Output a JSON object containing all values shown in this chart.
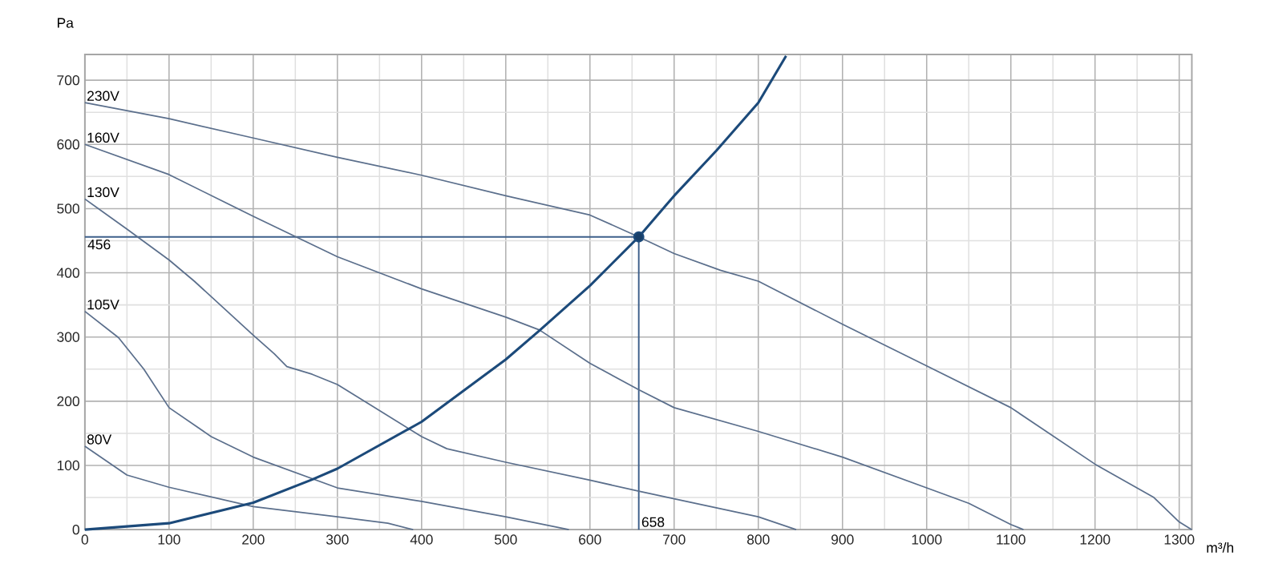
{
  "chart_data": {
    "type": "line",
    "xlabel": "m³/h",
    "ylabel": "Pa",
    "xlim": [
      0,
      1315
    ],
    "ylim": [
      0,
      740
    ],
    "xticks": [
      0,
      100,
      200,
      300,
      400,
      500,
      600,
      700,
      800,
      900,
      1000,
      1100,
      1200,
      1300
    ],
    "yticks": [
      0,
      100,
      200,
      300,
      400,
      500,
      600,
      700
    ],
    "grid": true,
    "series": [
      {
        "name": "230V",
        "color": "#5b6f8c",
        "x": [
          0,
          100,
          200,
          300,
          400,
          500,
          600,
          658,
          700,
          755,
          800,
          900,
          1000,
          1100,
          1200,
          1270,
          1300,
          1315
        ],
        "values": [
          665,
          640,
          610,
          580,
          552,
          520,
          490,
          456,
          430,
          404,
          387,
          320,
          255,
          190,
          102,
          50,
          12,
          0
        ]
      },
      {
        "name": "160V",
        "color": "#5b6f8c",
        "x": [
          0,
          100,
          200,
          300,
          400,
          500,
          540,
          600,
          658,
          700,
          800,
          900,
          1000,
          1050,
          1100,
          1115
        ],
        "values": [
          600,
          553,
          488,
          425,
          375,
          331,
          311,
          259,
          218,
          190,
          153,
          113,
          65,
          41,
          8,
          0
        ]
      },
      {
        "name": "130V",
        "color": "#5b6f8c",
        "x": [
          0,
          50,
          100,
          130,
          200,
          225,
          240,
          270,
          300,
          400,
          430,
          500,
          600,
          658,
          700,
          800,
          845
        ],
        "values": [
          515,
          468,
          420,
          387,
          303,
          274,
          254,
          242,
          226,
          145,
          126,
          105,
          77,
          60,
          48,
          20,
          0
        ]
      },
      {
        "name": "105V",
        "color": "#5b6f8c",
        "x": [
          0,
          40,
          70,
          100,
          150,
          200,
          300,
          400,
          500,
          575
        ],
        "values": [
          340,
          299,
          250,
          190,
          145,
          113,
          65,
          44,
          20,
          0
        ]
      },
      {
        "name": "80V",
        "color": "#5b6f8c",
        "x": [
          0,
          50,
          100,
          200,
          300,
          360,
          390
        ],
        "values": [
          130,
          85,
          66,
          36,
          20,
          10,
          0
        ]
      },
      {
        "color": "#1c4a7a",
        "x": [
          0,
          100,
          200,
          270,
          300,
          400,
          500,
          540,
          600,
          658,
          700,
          750,
          800,
          833
        ],
        "values": [
          0,
          10,
          42,
          78,
          95,
          168,
          265,
          310,
          380,
          456,
          520,
          590,
          665,
          738
        ]
      },
      {
        "type": "scatter",
        "marker": "circle",
        "color": "#1c4a7a",
        "x": [
          658
        ],
        "values": [
          456
        ]
      }
    ],
    "ref_lines": [
      {
        "axis": "y",
        "value": 456,
        "label": "456",
        "color": "#3d5f8a"
      },
      {
        "axis": "x",
        "value": 658,
        "label": "658",
        "color": "#3d5f8a"
      }
    ]
  }
}
